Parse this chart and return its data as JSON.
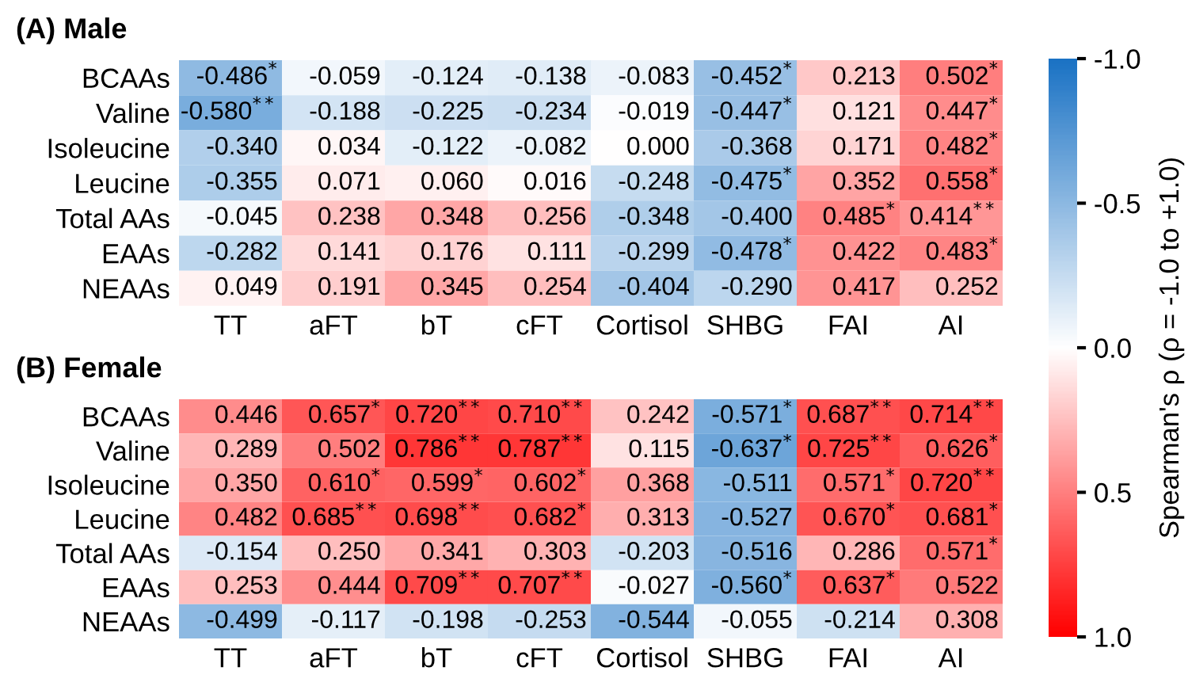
{
  "chart_data": [
    {
      "type": "heatmap",
      "title": "(A) Male",
      "categories": [
        "TT",
        "aFT",
        "bT",
        "cFT",
        "Cortisol",
        "SHBG",
        "FAI",
        "AI"
      ],
      "y_categories": [
        "BCAAs",
        "Valine",
        "Isoleucine",
        "Leucine",
        "Total AAs",
        "EAAs",
        "NEAAs"
      ],
      "cells": [
        [
          -0.486,
          -0.059,
          -0.124,
          -0.138,
          -0.083,
          -0.452,
          0.213,
          0.502
        ],
        [
          -0.58,
          -0.188,
          -0.225,
          -0.234,
          -0.019,
          -0.447,
          0.121,
          0.447
        ],
        [
          -0.34,
          0.034,
          -0.122,
          -0.082,
          0.0,
          -0.368,
          0.171,
          0.482
        ],
        [
          -0.355,
          0.071,
          0.06,
          0.016,
          -0.248,
          -0.475,
          0.352,
          0.558
        ],
        [
          -0.045,
          0.238,
          0.348,
          0.256,
          -0.348,
          -0.4,
          0.485,
          0.414
        ],
        [
          -0.282,
          0.141,
          0.176,
          0.111,
          -0.299,
          -0.478,
          0.422,
          0.483
        ],
        [
          0.049,
          0.191,
          0.345,
          0.254,
          -0.404,
          -0.29,
          0.417,
          0.252
        ]
      ],
      "cell_labels": [
        [
          "-0.486$^{*}$",
          "-0.059",
          "-0.124",
          "-0.138",
          "-0.083",
          "-0.452$^{*}$",
          "0.213",
          "0.502$^{*}$"
        ],
        [
          "-0.580$^{**}$",
          "-0.188",
          "-0.225",
          "-0.234",
          "-0.019",
          "-0.447$^{*}$",
          "0.121",
          "0.447$^{*}$"
        ],
        [
          "-0.340",
          "0.034",
          "-0.122",
          "-0.082",
          "0.000",
          "-0.368",
          "0.171",
          "0.482$^{*}$"
        ],
        [
          "-0.355",
          "0.071",
          "0.060",
          "0.016",
          "-0.248",
          "-0.475$^{*}$",
          "0.352",
          "0.558$^{*}$"
        ],
        [
          "-0.045",
          "0.238",
          "0.348",
          "0.256",
          "-0.348",
          "-0.400",
          "0.485$^{*}$",
          "0.414$^{**}$"
        ],
        [
          "-0.282",
          "0.141",
          "0.176",
          "0.111",
          "-0.299",
          "-0.478$^{*}$",
          "0.422",
          "0.483$^{*}$"
        ],
        [
          "0.049",
          "0.191",
          "0.345",
          "0.254",
          "-0.404",
          "-0.290",
          "0.417",
          "0.252"
        ]
      ],
      "colors": [
        "#1a72c4",
        "#ffffff",
        "#ff0000"
      ],
      "clim": [
        1.0,
        -1.0
      ],
      "cticks": [
        {
          "value": -1.0,
          "label": "-1.0"
        },
        {
          "value": -0.5,
          "label": "-0.5"
        },
        {
          "value": 0.0,
          "label": "0.0"
        },
        {
          "value": 0.5,
          "label": "0.5"
        },
        {
          "value": 1.0,
          "label": "1.0"
        }
      ],
      "clabel": "Spearman's ρ (ρ = -1.0 to +1.0)"
    },
    {
      "type": "heatmap",
      "title": "(B) Female",
      "categories": [
        "TT",
        "aFT",
        "bT",
        "cFT",
        "Cortisol",
        "SHBG",
        "FAI",
        "AI"
      ],
      "y_categories": [
        "BCAAs",
        "Valine",
        "Isoleucine",
        "Leucine",
        "Total AAs",
        "EAAs",
        "NEAAs"
      ],
      "cells": [
        [
          0.446,
          0.657,
          0.72,
          0.71,
          0.242,
          -0.571,
          0.687,
          0.714
        ],
        [
          0.289,
          0.502,
          0.786,
          0.787,
          0.115,
          -0.637,
          0.725,
          0.626
        ],
        [
          0.35,
          0.61,
          0.599,
          0.602,
          0.368,
          -0.511,
          0.571,
          0.72
        ],
        [
          0.482,
          0.685,
          0.698,
          0.682,
          0.313,
          -0.527,
          0.67,
          0.681
        ],
        [
          -0.154,
          0.25,
          0.341,
          0.303,
          -0.203,
          -0.516,
          0.286,
          0.571
        ],
        [
          0.253,
          0.444,
          0.709,
          0.707,
          -0.027,
          -0.56,
          0.637,
          0.522
        ],
        [
          -0.499,
          -0.117,
          -0.198,
          -0.253,
          -0.544,
          -0.055,
          -0.214,
          0.308
        ]
      ],
      "cell_labels": [
        [
          "0.446",
          "0.657$^{*}$",
          "0.720$^{**}$",
          "0.710$^{**}$",
          "0.242",
          "-0.571$^{*}$",
          "0.687$^{**}$",
          "0.714$^{**}$"
        ],
        [
          "0.289",
          "0.502",
          "0.786$^{**}$",
          "0.787$^{**}$",
          "0.115",
          "-0.637$^{*}$",
          "0.725$^{**}$",
          "0.626$^{*}$"
        ],
        [
          "0.350",
          "0.610$^{*}$",
          "0.599$^{*}$",
          "0.602$^{*}$",
          "0.368",
          "-0.511",
          "0.571$^{*}$",
          "0.720$^{**}$"
        ],
        [
          "0.482",
          "0.685$^{**}$",
          "0.698$^{**}$",
          "0.682$^{*}$",
          "0.313",
          "-0.527",
          "0.670$^{*}$",
          "0.681$^{*}$"
        ],
        [
          "-0.154",
          "0.250",
          "0.341",
          "0.303",
          "-0.203",
          "-0.516",
          "0.286",
          "0.571$^{*}$"
        ],
        [
          "0.253",
          "0.444",
          "0.709$^{**}$",
          "0.707$^{**}$",
          "-0.027",
          "-0.560$^{*}$",
          "0.637$^{*}$",
          "0.522"
        ],
        [
          "-0.499",
          "-0.117",
          "-0.198",
          "-0.253",
          "-0.544",
          "-0.055",
          "-0.214",
          "0.308"
        ]
      ],
      "colors": [
        "#1a72c4",
        "#ffffff",
        "#ff0000"
      ]
    }
  ]
}
